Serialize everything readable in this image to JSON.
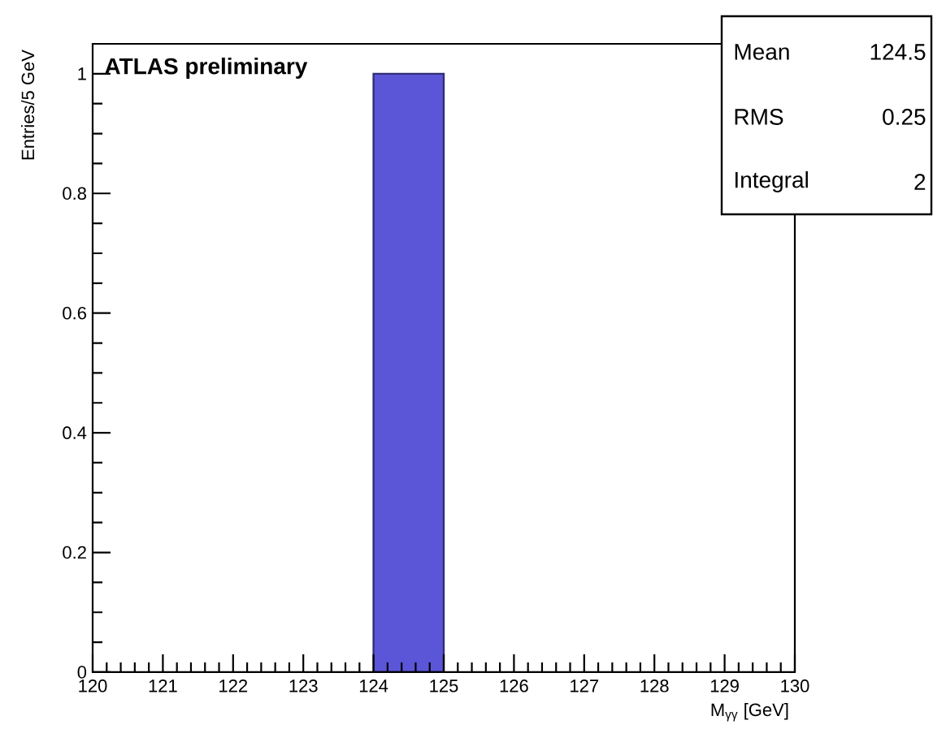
{
  "chart_data": {
    "type": "histogram",
    "bins": [
      124,
      125
    ],
    "values": [
      1
    ],
    "color": "#5b55d8",
    "xlim": [
      120,
      130
    ],
    "ylim": [
      0,
      1.05
    ],
    "xticks": [
      120,
      121,
      122,
      123,
      124,
      125,
      126,
      127,
      128,
      129,
      130
    ],
    "yticks": [
      0,
      0.2,
      0.4,
      0.6,
      0.8,
      1
    ],
    "xlabel": "M$_{γγ}$ [GeV]",
    "ylabel": "Entries/5 GeV",
    "annotations": [
      "ATLAS preliminary",
      "Mean",
      "124.5",
      "RMS",
      "0.25",
      "Integral",
      "2"
    ]
  }
}
